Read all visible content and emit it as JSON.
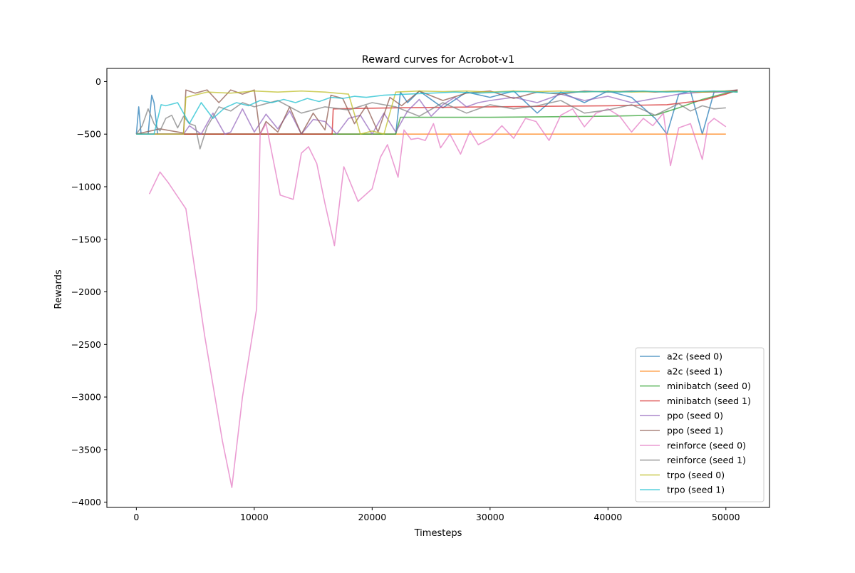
{
  "chart_data": {
    "type": "line",
    "title": "Reward curves for Acrobot-v1",
    "xlabel": "Timesteps",
    "ylabel": "Rewards",
    "xlim": [
      -2500,
      53700
    ],
    "ylim": [
      -4050,
      125
    ],
    "xticks": [
      0,
      10000,
      20000,
      30000,
      40000,
      50000
    ],
    "xtick_labels": [
      "0",
      "10000",
      "20000",
      "30000",
      "40000",
      "50000"
    ],
    "yticks": [
      0,
      -500,
      -1000,
      -1500,
      -2000,
      -2500,
      -3000,
      -3500,
      -4000
    ],
    "ytick_labels": [
      "0",
      "−500",
      "−1000",
      "−1500",
      "−2000",
      "−2500",
      "−3000",
      "−3500",
      "−4000"
    ],
    "grid": false,
    "legend_position": "lower-right",
    "series": [
      {
        "name": "a2c (seed 0)",
        "color": "#1f77b4",
        "x": [
          0,
          200,
          400,
          700,
          1000,
          1300,
          1500,
          1800,
          2200,
          4000,
          22000,
          22400,
          23000,
          24000,
          26000,
          28000,
          30000,
          32000,
          34000,
          36000,
          38000,
          40000,
          42000,
          44000,
          45000,
          46000,
          47000,
          48000,
          49000,
          50000,
          51000
        ],
        "y": [
          -500,
          -240,
          -500,
          -500,
          -500,
          -130,
          -200,
          -500,
          -500,
          -500,
          -500,
          -100,
          -200,
          -90,
          -250,
          -100,
          -150,
          -90,
          -300,
          -100,
          -200,
          -90,
          -150,
          -350,
          -500,
          -120,
          -90,
          -500,
          -100,
          -90,
          -100
        ]
      },
      {
        "name": "a2c (seed 1)",
        "color": "#ff7f0e",
        "x": [
          0,
          10000,
          20000,
          30000,
          40000,
          50000
        ],
        "y": [
          -500,
          -500,
          -500,
          -500,
          -500,
          -500
        ]
      },
      {
        "name": "minibatch (seed 0)",
        "color": "#2ca02c",
        "x": [
          0,
          10000,
          16000,
          22000,
          22400,
          30000,
          40000,
          44000,
          46000,
          48000,
          50000,
          51000
        ],
        "y": [
          -500,
          -500,
          -500,
          -500,
          -340,
          -340,
          -330,
          -320,
          -250,
          -170,
          -110,
          -90
        ]
      },
      {
        "name": "minibatch (seed 1)",
        "color": "#d62728",
        "x": [
          0,
          10000,
          16600,
          16700,
          22000,
          30000,
          40000,
          45000,
          48000,
          50000,
          51000
        ],
        "y": [
          -500,
          -500,
          -500,
          -260,
          -250,
          -240,
          -230,
          -220,
          -180,
          -120,
          -80
        ]
      },
      {
        "name": "ppo (seed 0)",
        "color": "#9467bd",
        "x": [
          0,
          2000,
          4000,
          4500,
          5500,
          6500,
          7500,
          8000,
          9000,
          10000,
          11000,
          12000,
          13000,
          14000,
          15000,
          16000,
          17000,
          18000,
          19000,
          20000,
          21000,
          22000,
          23000,
          24000,
          25000,
          26000,
          27000,
          28000,
          29000,
          30000,
          32000,
          34000,
          36000,
          38000,
          40000,
          42000,
          44000,
          46000,
          48000,
          50000,
          51000
        ],
        "y": [
          -500,
          -500,
          -500,
          -420,
          -500,
          -300,
          -500,
          -480,
          -260,
          -480,
          -310,
          -450,
          -280,
          -500,
          -360,
          -380,
          -500,
          -350,
          -320,
          -500,
          -300,
          -480,
          -280,
          -170,
          -330,
          -220,
          -150,
          -240,
          -200,
          -180,
          -150,
          -200,
          -120,
          -180,
          -140,
          -200,
          -160,
          -120,
          -100,
          -100,
          -80
        ]
      },
      {
        "name": "ppo (seed 1)",
        "color": "#8c564b",
        "x": [
          0,
          2000,
          4000,
          4200,
          5000,
          6000,
          7000,
          8000,
          9000,
          10000,
          10500,
          11000,
          12000,
          13000,
          14000,
          15000,
          16000,
          16500,
          17500,
          18500,
          19500,
          20500,
          21500,
          22500,
          24000,
          26000,
          28000,
          30000,
          32000,
          34000,
          36000,
          38000,
          40000,
          42000,
          44000,
          46000,
          48000,
          50000,
          51000
        ],
        "y": [
          -500,
          -450,
          -490,
          -80,
          -110,
          -80,
          -200,
          -80,
          -120,
          -80,
          -500,
          -380,
          -480,
          -240,
          -500,
          -300,
          -460,
          -130,
          -160,
          -400,
          -230,
          -480,
          -150,
          -230,
          -90,
          -180,
          -110,
          -90,
          -160,
          -100,
          -120,
          -90,
          -100,
          -90,
          -100,
          -90,
          -100,
          -90,
          -80
        ]
      },
      {
        "name": "reinforce (seed 0)",
        "color": "#e377c2",
        "x": [
          1100,
          2000,
          2700,
          4200,
          5800,
          7300,
          8100,
          9000,
          10200,
          10500,
          11000,
          12200,
          13300,
          14000,
          14600,
          15300,
          16000,
          16800,
          17600,
          18800,
          20000,
          20700,
          21300,
          22200,
          22700,
          23300,
          23900,
          24500,
          25200,
          25800,
          26600,
          27500,
          28300,
          29000,
          30000,
          31000,
          32000,
          33000,
          33900,
          35000,
          36000,
          37000,
          38000,
          39000,
          40000,
          41000,
          42000,
          43000,
          43800,
          44700,
          45300,
          46000,
          47000,
          48000,
          48500,
          49000,
          50000
        ],
        "y": [
          -1070,
          -860,
          -960,
          -1210,
          -2420,
          -3420,
          -3860,
          -3000,
          -2160,
          -500,
          -400,
          -1080,
          -1120,
          -680,
          -620,
          -780,
          -1160,
          -1560,
          -810,
          -1140,
          -1020,
          -720,
          -600,
          -910,
          -460,
          -550,
          -540,
          -560,
          -400,
          -630,
          -500,
          -690,
          -470,
          -600,
          -540,
          -420,
          -540,
          -350,
          -380,
          -560,
          -320,
          -260,
          -430,
          -300,
          -260,
          -330,
          -480,
          -350,
          -420,
          -300,
          -800,
          -440,
          -400,
          -740,
          -400,
          -350,
          -430
        ]
      },
      {
        "name": "reinforce (seed 1)",
        "color": "#7f7f7f",
        "x": [
          0,
          500,
          1000,
          1500,
          2000,
          2500,
          3000,
          3500,
          4000,
          4500,
          5000,
          5400,
          6000,
          7000,
          8000,
          9000,
          10000,
          12000,
          14000,
          16000,
          18000,
          20000,
          22000,
          24000,
          26000,
          28000,
          30000,
          32000,
          34000,
          36000,
          38000,
          40000,
          42000,
          44000,
          46000,
          47000,
          48000,
          49000,
          50000
        ],
        "y": [
          -500,
          -420,
          -260,
          -400,
          -470,
          -350,
          -320,
          -440,
          -330,
          -400,
          -420,
          -640,
          -430,
          -240,
          -280,
          -200,
          -240,
          -180,
          -300,
          -240,
          -270,
          -200,
          -240,
          -330,
          -200,
          -300,
          -220,
          -260,
          -230,
          -180,
          -300,
          -270,
          -220,
          -320,
          -210,
          -280,
          -230,
          -260,
          -250
        ]
      },
      {
        "name": "trpo (seed 0)",
        "color": "#bcbd22",
        "x": [
          0,
          2000,
          4000,
          4200,
          6000,
          8000,
          10000,
          12000,
          14000,
          16000,
          17000,
          18000,
          19000,
          20000,
          21000,
          22000,
          24000,
          26000,
          28000,
          30000,
          32000,
          34000,
          36000,
          38000,
          40000,
          42000,
          44000,
          46000,
          48000,
          50000,
          51000
        ],
        "y": [
          -500,
          -500,
          -500,
          -150,
          -100,
          -110,
          -90,
          -100,
          -90,
          -100,
          -110,
          -120,
          -500,
          -470,
          -500,
          -100,
          -90,
          -95,
          -90,
          -100,
          -90,
          -95,
          -90,
          -100,
          -90,
          -100,
          -95,
          -90,
          -100,
          -90,
          -100
        ]
      },
      {
        "name": "trpo (seed 1)",
        "color": "#17becf",
        "x": [
          0,
          1500,
          2100,
          2500,
          3500,
          4500,
          5500,
          6500,
          7500,
          8500,
          9500,
          10500,
          11500,
          12500,
          13500,
          14500,
          15500,
          16500,
          17500,
          18500,
          19500,
          21000,
          23000,
          25000,
          27000,
          29000,
          31000,
          33000,
          35000,
          37000,
          39000,
          41000,
          43000,
          45000,
          47000,
          49000,
          51000
        ],
        "y": [
          -500,
          -500,
          -220,
          -230,
          -200,
          -400,
          -200,
          -350,
          -250,
          -200,
          -230,
          -180,
          -200,
          -170,
          -200,
          -160,
          -190,
          -150,
          -160,
          -140,
          -150,
          -130,
          -120,
          -110,
          -100,
          -110,
          -100,
          -95,
          -110,
          -100,
          -95,
          -100,
          -90,
          -100,
          -95,
          -90,
          -100
        ]
      }
    ]
  }
}
